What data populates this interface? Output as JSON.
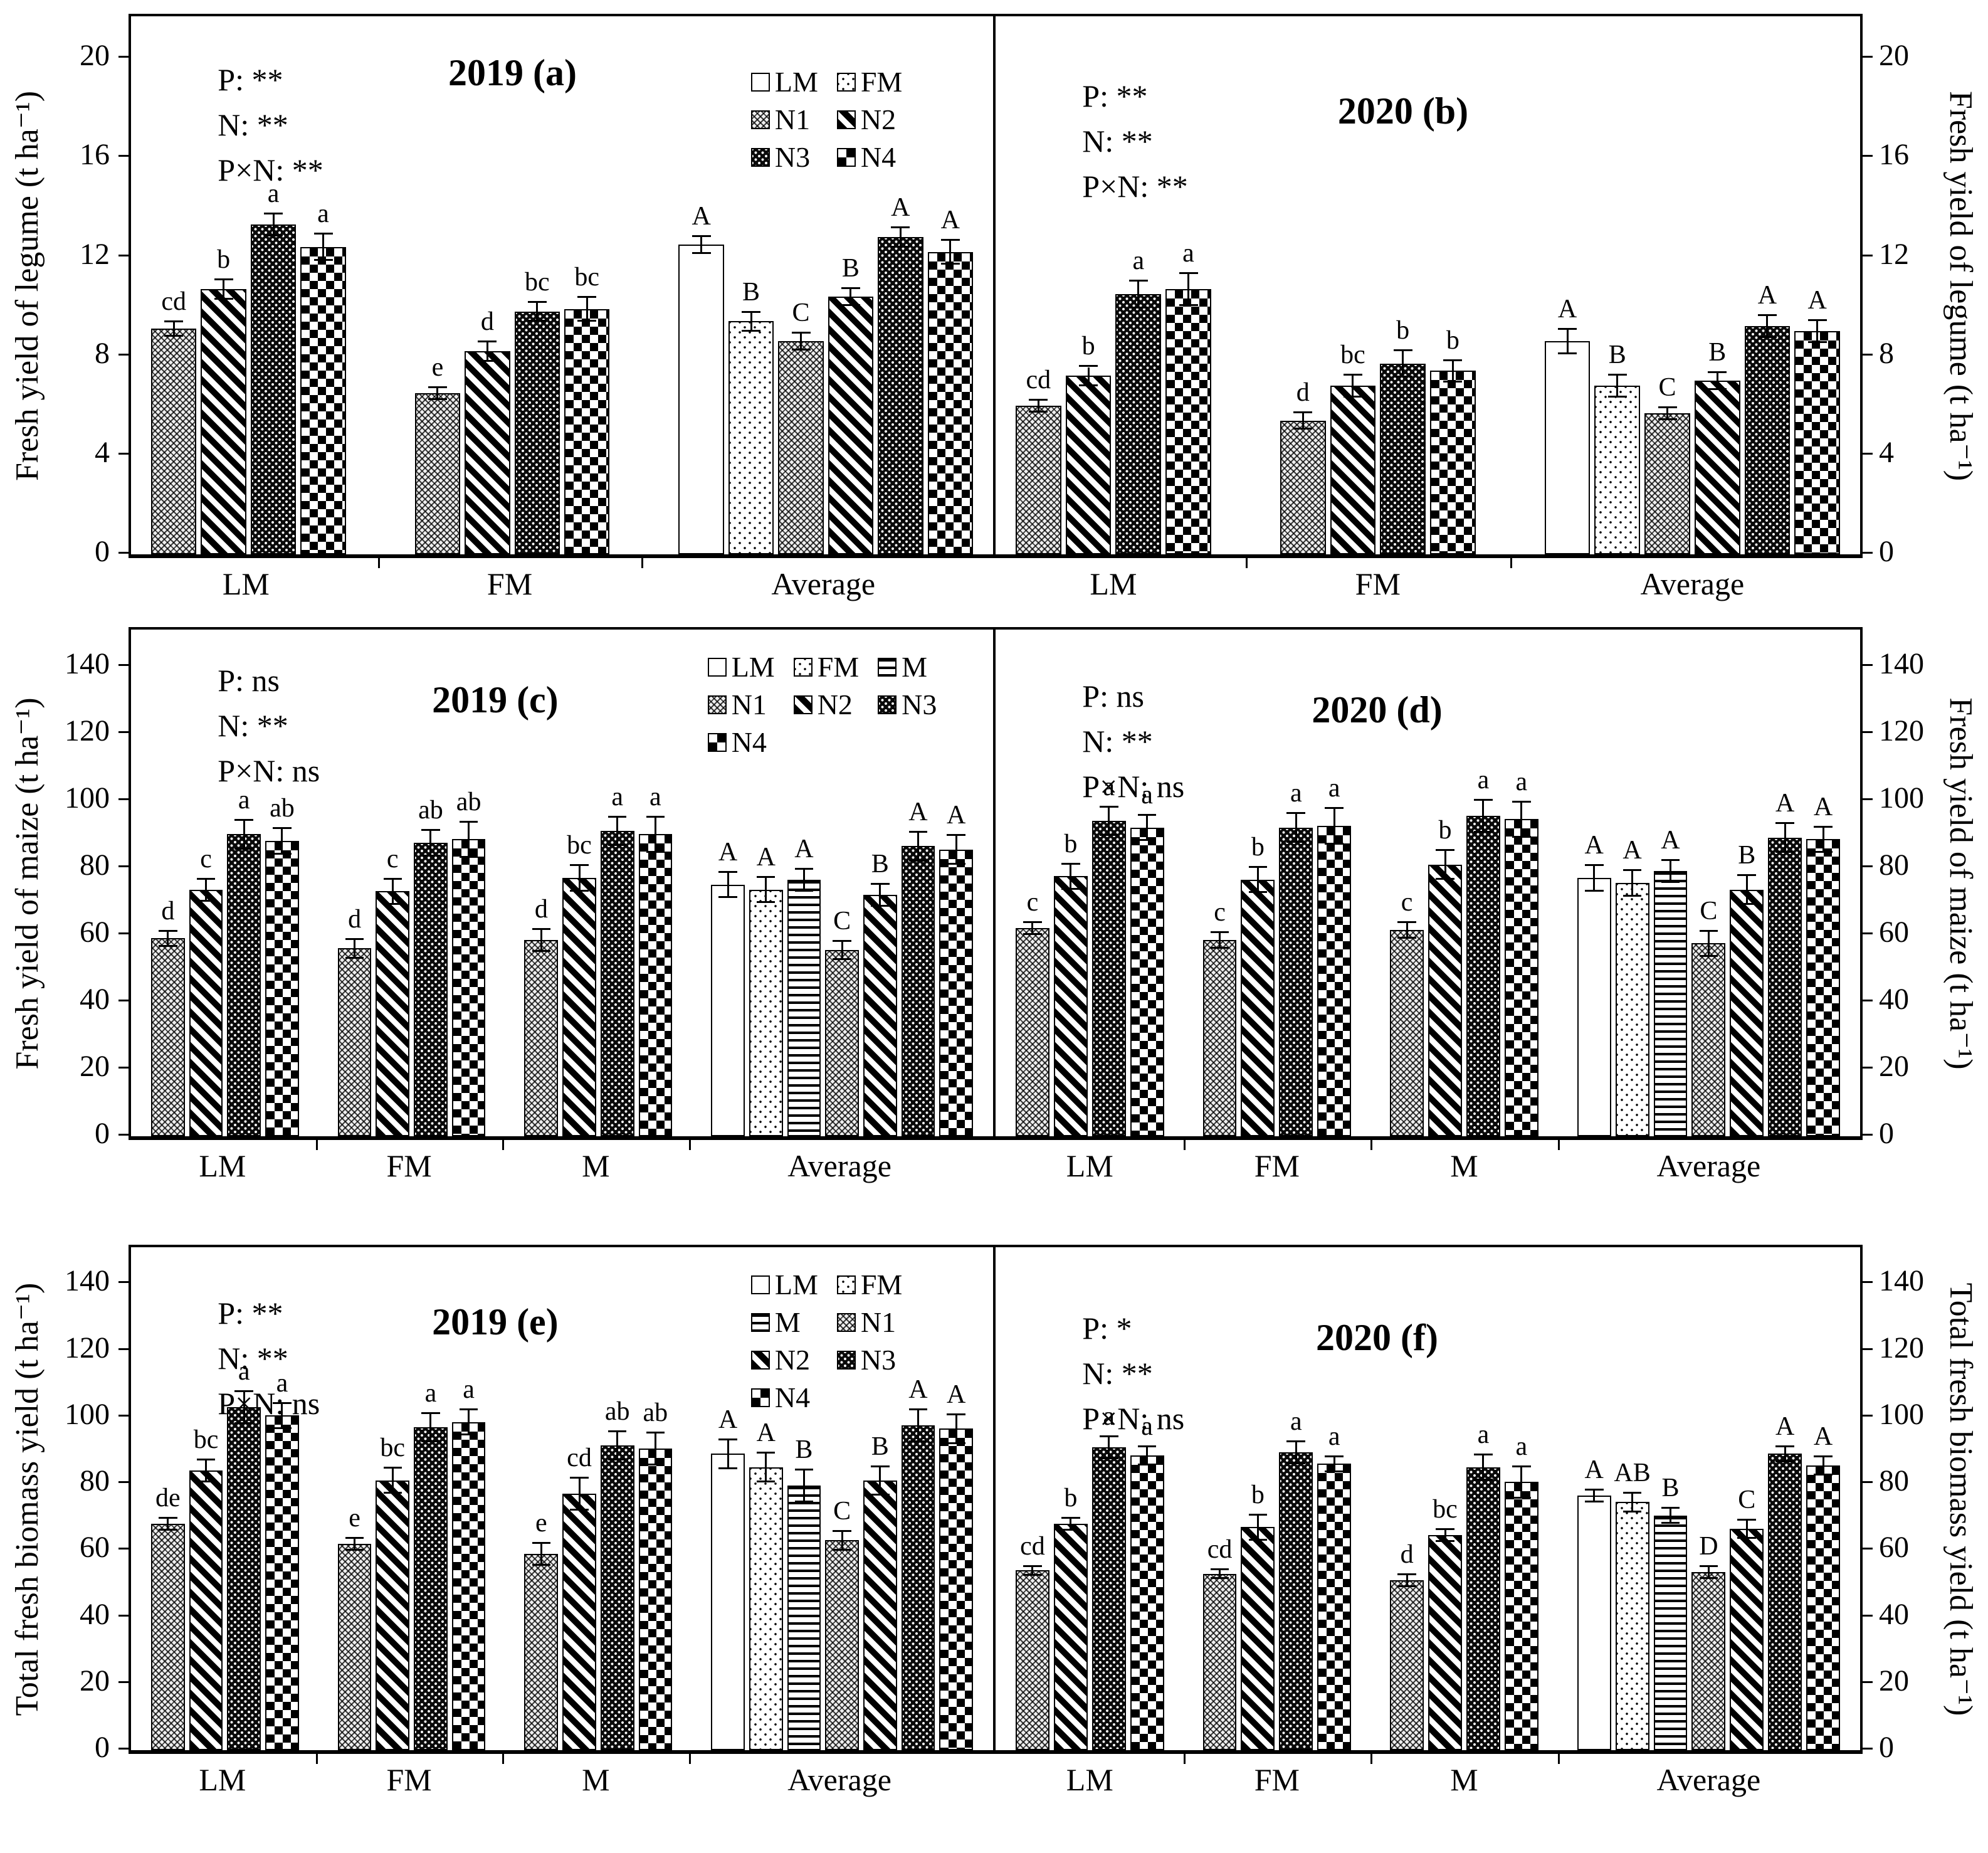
{
  "chart_data": {
    "type": "bar",
    "unit": "t ha⁻¹",
    "series_order": [
      "LM",
      "FM",
      "M",
      "N1",
      "N2",
      "N3",
      "N4"
    ],
    "grid": false,
    "error_bars": true,
    "panels": [
      {
        "id": "a",
        "title": "2019 (a)",
        "stats": [
          "P: **",
          "N: **",
          "P×N: **"
        ],
        "ylabel": "Fresh yield of legume (t ha⁻¹)",
        "axis_side": "left",
        "ylim": [
          0,
          21.7
        ],
        "yticks": [
          0,
          4,
          8,
          12,
          16,
          20
        ],
        "legend": {
          "cols": 2,
          "items": [
            "LM",
            "FM",
            "N1",
            "N2",
            "N3",
            "N4"
          ]
        },
        "groups": [
          {
            "label": "LM",
            "bars": [
              {
                "s": "N1",
                "v": 9.1,
                "e": 0.25,
                "l": "cd"
              },
              {
                "s": "N2",
                "v": 10.7,
                "e": 0.35,
                "l": "b"
              },
              {
                "s": "N3",
                "v": 13.3,
                "e": 0.4,
                "l": "a"
              },
              {
                "s": "N4",
                "v": 12.4,
                "e": 0.5,
                "l": "a"
              }
            ]
          },
          {
            "label": "FM",
            "bars": [
              {
                "s": "N1",
                "v": 6.5,
                "e": 0.2,
                "l": "e"
              },
              {
                "s": "N2",
                "v": 8.2,
                "e": 0.35,
                "l": "d"
              },
              {
                "s": "N3",
                "v": 9.8,
                "e": 0.35,
                "l": "bc"
              },
              {
                "s": "N4",
                "v": 9.9,
                "e": 0.45,
                "l": "bc"
              }
            ]
          },
          {
            "label": "Average",
            "bars": [
              {
                "s": "LM",
                "v": 12.5,
                "e": 0.3,
                "l": "A"
              },
              {
                "s": "FM",
                "v": 9.4,
                "e": 0.35,
                "l": "B"
              },
              {
                "s": "N1",
                "v": 8.6,
                "e": 0.3,
                "l": "C"
              },
              {
                "s": "N2",
                "v": 10.4,
                "e": 0.3,
                "l": "B"
              },
              {
                "s": "N3",
                "v": 12.8,
                "e": 0.35,
                "l": "A"
              },
              {
                "s": "N4",
                "v": 12.2,
                "e": 0.45,
                "l": "A"
              }
            ]
          }
        ]
      },
      {
        "id": "b",
        "title": "2020 (b)",
        "stats": [
          "P: **",
          "N: **",
          "P×N: **"
        ],
        "ylabel": "Fresh yield of legume (t ha⁻¹)",
        "axis_side": "right",
        "ylim": [
          0,
          21.7
        ],
        "yticks": [
          0,
          4,
          8,
          12,
          16,
          20
        ],
        "legend": null,
        "groups": [
          {
            "label": "LM",
            "bars": [
              {
                "s": "N1",
                "v": 6.0,
                "e": 0.2,
                "l": "cd"
              },
              {
                "s": "N2",
                "v": 7.2,
                "e": 0.35,
                "l": "b"
              },
              {
                "s": "N3",
                "v": 10.5,
                "e": 0.5,
                "l": "a"
              },
              {
                "s": "N4",
                "v": 10.7,
                "e": 0.6,
                "l": "a"
              }
            ]
          },
          {
            "label": "FM",
            "bars": [
              {
                "s": "N1",
                "v": 5.4,
                "e": 0.3,
                "l": "d"
              },
              {
                "s": "N2",
                "v": 6.8,
                "e": 0.4,
                "l": "bc"
              },
              {
                "s": "N3",
                "v": 7.7,
                "e": 0.5,
                "l": "b"
              },
              {
                "s": "N4",
                "v": 7.4,
                "e": 0.4,
                "l": "b"
              }
            ]
          },
          {
            "label": "Average",
            "bars": [
              {
                "s": "LM",
                "v": 8.6,
                "e": 0.45,
                "l": "A"
              },
              {
                "s": "FM",
                "v": 6.8,
                "e": 0.4,
                "l": "B"
              },
              {
                "s": "N1",
                "v": 5.7,
                "e": 0.2,
                "l": "C"
              },
              {
                "s": "N2",
                "v": 7.0,
                "e": 0.3,
                "l": "B"
              },
              {
                "s": "N3",
                "v": 9.2,
                "e": 0.4,
                "l": "A"
              },
              {
                "s": "N4",
                "v": 9.0,
                "e": 0.4,
                "l": "A"
              }
            ]
          }
        ]
      },
      {
        "id": "c",
        "title": "2019 (c)",
        "stats": [
          "P: ns",
          "N: **",
          "P×N: ns"
        ],
        "ylabel": "Fresh yield of maize (t ha⁻¹)",
        "axis_side": "left",
        "ylim": [
          0,
          151
        ],
        "yticks": [
          0,
          20,
          40,
          60,
          80,
          100,
          120,
          140
        ],
        "legend": {
          "cols": 3,
          "items": [
            "LM",
            "FM",
            "M",
            "N1",
            "N2",
            "N3",
            "N4"
          ]
        },
        "groups": [
          {
            "label": "LM",
            "bars": [
              {
                "s": "N1",
                "v": 59,
                "e": 2,
                "l": "d"
              },
              {
                "s": "N2",
                "v": 73.5,
                "e": 3,
                "l": "c"
              },
              {
                "s": "N3",
                "v": 90,
                "e": 4,
                "l": "a"
              },
              {
                "s": "N4",
                "v": 88,
                "e": 3.5,
                "l": "ab"
              }
            ]
          },
          {
            "label": "FM",
            "bars": [
              {
                "s": "N1",
                "v": 56,
                "e": 2.5,
                "l": "d"
              },
              {
                "s": "N2",
                "v": 73,
                "e": 3.5,
                "l": "c"
              },
              {
                "s": "N3",
                "v": 87.5,
                "e": 3.5,
                "l": "ab"
              },
              {
                "s": "N4",
                "v": 88.5,
                "e": 5,
                "l": "ab"
              }
            ]
          },
          {
            "label": "M",
            "bars": [
              {
                "s": "N1",
                "v": 58.5,
                "e": 3,
                "l": "d"
              },
              {
                "s": "N2",
                "v": 77,
                "e": 3.5,
                "l": "bc"
              },
              {
                "s": "N3",
                "v": 91,
                "e": 4,
                "l": "a"
              },
              {
                "s": "N4",
                "v": 90,
                "e": 5,
                "l": "a"
              }
            ]
          },
          {
            "label": "Average",
            "bars": [
              {
                "s": "LM",
                "v": 75,
                "e": 3.5,
                "l": "A"
              },
              {
                "s": "FM",
                "v": 73.5,
                "e": 3.5,
                "l": "A"
              },
              {
                "s": "M",
                "v": 76.5,
                "e": 3,
                "l": "A"
              },
              {
                "s": "N1",
                "v": 55.5,
                "e": 2.5,
                "l": "C"
              },
              {
                "s": "N2",
                "v": 72,
                "e": 3,
                "l": "B"
              },
              {
                "s": "N3",
                "v": 86.5,
                "e": 4,
                "l": "A"
              },
              {
                "s": "N4",
                "v": 85.5,
                "e": 4,
                "l": "A"
              }
            ]
          }
        ]
      },
      {
        "id": "d",
        "title": "2020 (d)",
        "stats": [
          "P: ns",
          "N: **",
          "P×N: ns"
        ],
        "ylabel": "Fresh yield of maize (t ha⁻¹)",
        "axis_side": "right",
        "ylim": [
          0,
          151
        ],
        "yticks": [
          0,
          20,
          40,
          60,
          80,
          100,
          120,
          140
        ],
        "legend": null,
        "groups": [
          {
            "label": "LM",
            "bars": [
              {
                "s": "N1",
                "v": 62,
                "e": 1.5,
                "l": "c"
              },
              {
                "s": "N2",
                "v": 77.5,
                "e": 3.5,
                "l": "b"
              },
              {
                "s": "N3",
                "v": 94,
                "e": 4,
                "l": "a"
              },
              {
                "s": "N4",
                "v": 92,
                "e": 3.5,
                "l": "a"
              }
            ]
          },
          {
            "label": "FM",
            "bars": [
              {
                "s": "N1",
                "v": 58.5,
                "e": 2,
                "l": "c"
              },
              {
                "s": "N2",
                "v": 76.5,
                "e": 3.5,
                "l": "b"
              },
              {
                "s": "N3",
                "v": 92,
                "e": 4,
                "l": "a"
              },
              {
                "s": "N4",
                "v": 92.5,
                "e": 5,
                "l": "a"
              }
            ]
          },
          {
            "label": "M",
            "bars": [
              {
                "s": "N1",
                "v": 61.5,
                "e": 2,
                "l": "c"
              },
              {
                "s": "N2",
                "v": 81,
                "e": 4,
                "l": "b"
              },
              {
                "s": "N3",
                "v": 95.5,
                "e": 4.5,
                "l": "a"
              },
              {
                "s": "N4",
                "v": 94.5,
                "e": 5,
                "l": "a"
              }
            ]
          },
          {
            "label": "Average",
            "bars": [
              {
                "s": "LM",
                "v": 77,
                "e": 3.5,
                "l": "A"
              },
              {
                "s": "FM",
                "v": 75.5,
                "e": 3.5,
                "l": "A"
              },
              {
                "s": "M",
                "v": 79,
                "e": 3,
                "l": "A"
              },
              {
                "s": "N1",
                "v": 57.5,
                "e": 3.5,
                "l": "C"
              },
              {
                "s": "N2",
                "v": 73.5,
                "e": 4,
                "l": "B"
              },
              {
                "s": "N3",
                "v": 89,
                "e": 4,
                "l": "A"
              },
              {
                "s": "N4",
                "v": 88.5,
                "e": 3.5,
                "l": "A"
              }
            ]
          }
        ]
      },
      {
        "id": "e",
        "title": "2019 (e)",
        "stats": [
          "P: **",
          "N: **",
          "P×N: ns"
        ],
        "ylabel": "Total fresh biomass yield (t ha⁻¹)",
        "axis_side": "left",
        "ylim": [
          0,
          151
        ],
        "yticks": [
          0,
          20,
          40,
          60,
          80,
          100,
          120,
          140
        ],
        "legend": {
          "cols": 2,
          "items": [
            "LM",
            "FM",
            "M",
            "N1",
            "N2",
            "N3",
            "N4"
          ]
        },
        "groups": [
          {
            "label": "LM",
            "bars": [
              {
                "s": "N1",
                "v": 68,
                "e": 1.5,
                "l": "de"
              },
              {
                "s": "N2",
                "v": 84,
                "e": 3,
                "l": "bc"
              },
              {
                "s": "N3",
                "v": 103,
                "e": 4.5,
                "l": "a"
              },
              {
                "s": "N4",
                "v": 100.5,
                "e": 3.5,
                "l": "a"
              }
            ]
          },
          {
            "label": "FM",
            "bars": [
              {
                "s": "N1",
                "v": 62,
                "e": 1.5,
                "l": "e"
              },
              {
                "s": "N2",
                "v": 81,
                "e": 3.5,
                "l": "bc"
              },
              {
                "s": "N3",
                "v": 97,
                "e": 4,
                "l": "a"
              },
              {
                "s": "N4",
                "v": 98.5,
                "e": 3.5,
                "l": "a"
              }
            ]
          },
          {
            "label": "M",
            "bars": [
              {
                "s": "N1",
                "v": 59,
                "e": 3,
                "l": "e"
              },
              {
                "s": "N2",
                "v": 77,
                "e": 4.5,
                "l": "cd"
              },
              {
                "s": "N3",
                "v": 91.5,
                "e": 4,
                "l": "ab"
              },
              {
                "s": "N4",
                "v": 90.5,
                "e": 4.5,
                "l": "ab"
              }
            ]
          },
          {
            "label": "Average",
            "bars": [
              {
                "s": "LM",
                "v": 89,
                "e": 4,
                "l": "A"
              },
              {
                "s": "FM",
                "v": 85,
                "e": 4,
                "l": "A"
              },
              {
                "s": "M",
                "v": 79.5,
                "e": 4.5,
                "l": "B"
              },
              {
                "s": "N1",
                "v": 63,
                "e": 2.5,
                "l": "C"
              },
              {
                "s": "N2",
                "v": 81,
                "e": 4,
                "l": "B"
              },
              {
                "s": "N3",
                "v": 97.5,
                "e": 4.5,
                "l": "A"
              },
              {
                "s": "N4",
                "v": 96.5,
                "e": 4,
                "l": "A"
              }
            ]
          }
        ]
      },
      {
        "id": "f",
        "title": "2020 (f)",
        "stats": [
          "P: *",
          "N: **",
          "P×N: ns"
        ],
        "ylabel": "Total fresh biomass yield (t ha⁻¹)",
        "axis_side": "right",
        "ylim": [
          0,
          151
        ],
        "yticks": [
          0,
          20,
          40,
          60,
          80,
          100,
          120,
          140
        ],
        "legend": null,
        "groups": [
          {
            "label": "LM",
            "bars": [
              {
                "s": "N1",
                "v": 54,
                "e": 1,
                "l": "cd"
              },
              {
                "s": "N2",
                "v": 68,
                "e": 1.5,
                "l": "b"
              },
              {
                "s": "N3",
                "v": 91,
                "e": 3,
                "l": "a"
              },
              {
                "s": "N4",
                "v": 88.5,
                "e": 2.5,
                "l": "a"
              }
            ]
          },
          {
            "label": "FM",
            "bars": [
              {
                "s": "N1",
                "v": 53,
                "e": 1,
                "l": "cd"
              },
              {
                "s": "N2",
                "v": 67,
                "e": 3.5,
                "l": "b"
              },
              {
                "s": "N3",
                "v": 89.5,
                "e": 3,
                "l": "a"
              },
              {
                "s": "N4",
                "v": 86,
                "e": 2,
                "l": "a"
              }
            ]
          },
          {
            "label": "M",
            "bars": [
              {
                "s": "N1",
                "v": 51,
                "e": 1.5,
                "l": "d"
              },
              {
                "s": "N2",
                "v": 64.5,
                "e": 1.5,
                "l": "bc"
              },
              {
                "s": "N3",
                "v": 85,
                "e": 3.5,
                "l": "a"
              },
              {
                "s": "N4",
                "v": 80.5,
                "e": 4.5,
                "l": "a"
              }
            ]
          },
          {
            "label": "Average",
            "bars": [
              {
                "s": "LM",
                "v": 76.5,
                "e": 1.5,
                "l": "A"
              },
              {
                "s": "FM",
                "v": 74.5,
                "e": 2.5,
                "l": "AB"
              },
              {
                "s": "M",
                "v": 70.5,
                "e": 2,
                "l": "B"
              },
              {
                "s": "N1",
                "v": 53.5,
                "e": 1.5,
                "l": "D"
              },
              {
                "s": "N2",
                "v": 66.5,
                "e": 2.5,
                "l": "C"
              },
              {
                "s": "N3",
                "v": 89,
                "e": 2,
                "l": "A"
              },
              {
                "s": "N4",
                "v": 85.5,
                "e": 2.5,
                "l": "A"
              }
            ]
          }
        ]
      }
    ]
  }
}
